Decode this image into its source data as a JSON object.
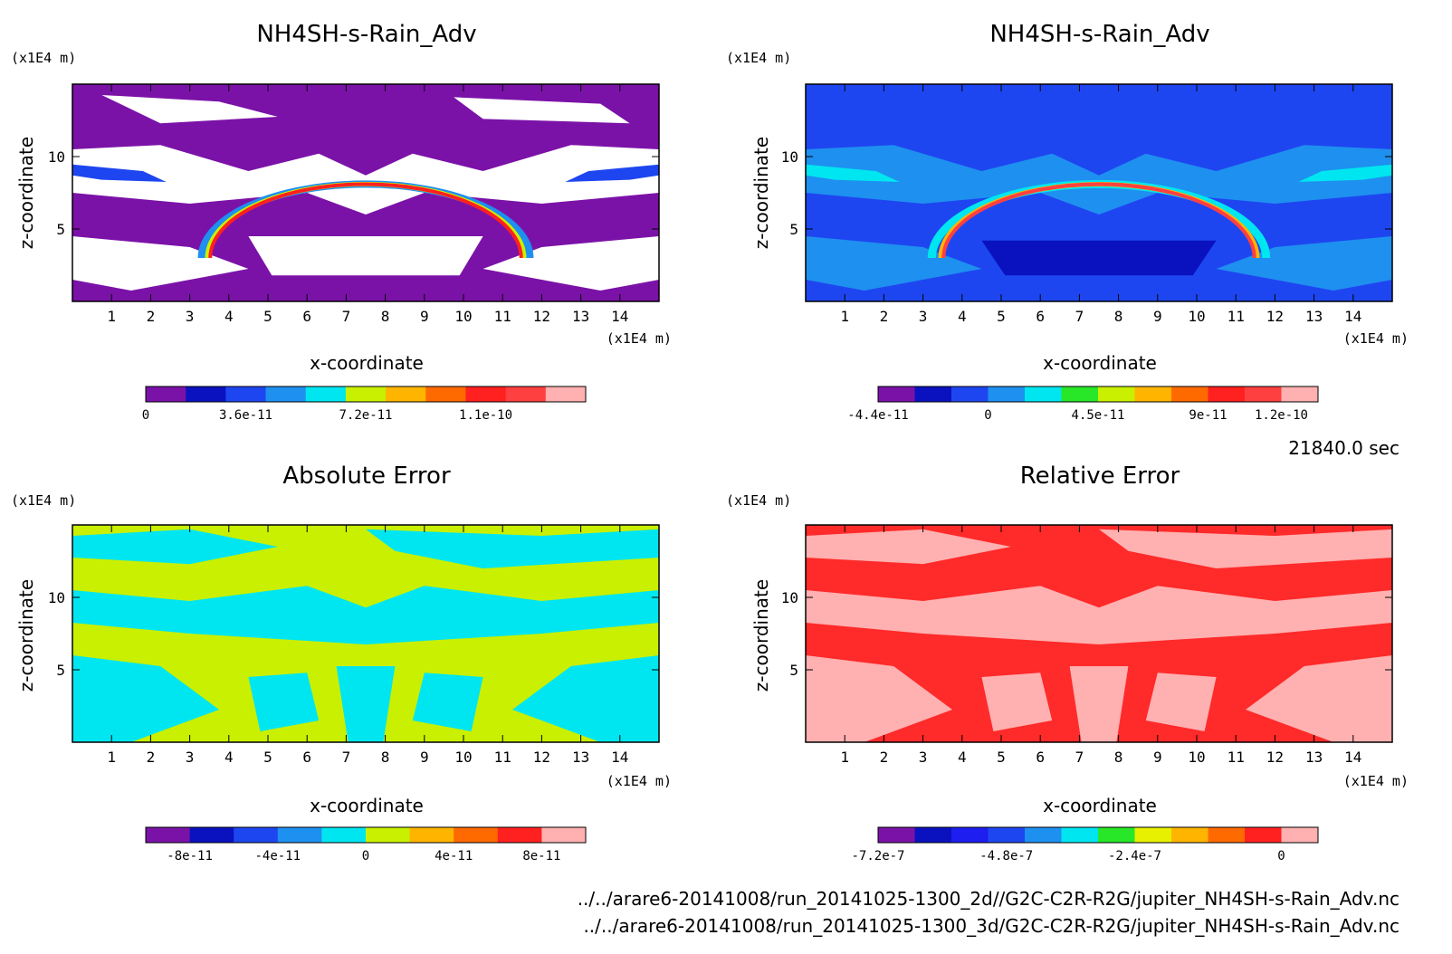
{
  "time_label": "21840.0 sec",
  "footer": {
    "line1": "../../arare6-20141008/run_20141025-1300_2d//G2C-C2R-R2G/jupiter_NH4SH-s-Rain_Adv.nc",
    "line2": "../../arare6-20141008/run_20141025-1300_3d/G2C-C2R-R2G/jupiter_NH4SH-s-Rain_Adv.nc"
  },
  "chart_data": [
    {
      "type": "heatmap",
      "title": "NH4SH-s-Rain_Adv",
      "xlabel": "x-coordinate",
      "ylabel": "z-coordinate",
      "x_unit": "(x1E4 m)",
      "z_unit": "(x1E4 m)",
      "xlim": [
        0,
        15
      ],
      "zlim": [
        0,
        15
      ],
      "x_ticks": [
        "1",
        "2",
        "3",
        "4",
        "5",
        "6",
        "7",
        "8",
        "9",
        "10",
        "11",
        "12",
        "13",
        "14"
      ],
      "z_ticks": [
        "5",
        "10"
      ],
      "colorbar": {
        "colors": [
          "#7b12a8",
          "#0a12c0",
          "#1e46f0",
          "#1e90f0",
          "#00e6f0",
          "#c8f000",
          "#ffb400",
          "#ff6a00",
          "#ff2020",
          "#ff4040",
          "#ffb0b0"
        ],
        "labels": [
          "0",
          "3.6e-11",
          "7.2e-11",
          "1.1e-10"
        ],
        "label_index": [
          0,
          2.5,
          5.5,
          8.5
        ]
      },
      "background_color": "#7b12a8"
    },
    {
      "type": "heatmap",
      "title": "NH4SH-s-Rain_Adv",
      "xlabel": "x-coordinate",
      "ylabel": "z-coordinate",
      "x_unit": "(x1E4 m)",
      "z_unit": "(x1E4 m)",
      "xlim": [
        0,
        15
      ],
      "zlim": [
        0,
        15
      ],
      "x_ticks": [
        "1",
        "2",
        "3",
        "4",
        "5",
        "6",
        "7",
        "8",
        "9",
        "10",
        "11",
        "12",
        "13",
        "14"
      ],
      "z_ticks": [
        "5",
        "10"
      ],
      "colorbar": {
        "colors": [
          "#7b12a8",
          "#0a12c0",
          "#1e46f0",
          "#1e90f0",
          "#00e6f0",
          "#28e628",
          "#c8f000",
          "#ffb400",
          "#ff6a00",
          "#ff2020",
          "#ff4040",
          "#ffb0b0"
        ],
        "labels": [
          "-4.4e-11",
          "0",
          "4.5e-11",
          "9e-11",
          "1.2e-10"
        ],
        "label_index": [
          0,
          3,
          6,
          9,
          11
        ]
      },
      "background_color": "#1e46f0"
    },
    {
      "type": "heatmap",
      "title": "Absolute Error",
      "xlabel": "x-coordinate",
      "ylabel": "z-coordinate",
      "x_unit": "(x1E4 m)",
      "z_unit": "(x1E4 m)",
      "xlim": [
        0,
        15
      ],
      "zlim": [
        0,
        15
      ],
      "x_ticks": [
        "1",
        "2",
        "3",
        "4",
        "5",
        "6",
        "7",
        "8",
        "9",
        "10",
        "11",
        "12",
        "13",
        "14"
      ],
      "z_ticks": [
        "5",
        "10"
      ],
      "colorbar": {
        "colors": [
          "#7b12a8",
          "#0a12c0",
          "#1e46f0",
          "#1e90f0",
          "#00e6f0",
          "#c8f000",
          "#ffb400",
          "#ff6a00",
          "#ff2020",
          "#ffb0b0"
        ],
        "labels": [
          "-8e-11",
          "-4e-11",
          "0",
          "4e-11",
          "8e-11"
        ],
        "label_index": [
          1,
          3,
          5,
          7,
          9
        ]
      },
      "background_color": "#c8f000"
    },
    {
      "type": "heatmap",
      "title": "Relative Error",
      "xlabel": "x-coordinate",
      "ylabel": "z-coordinate",
      "x_unit": "(x1E4 m)",
      "z_unit": "(x1E4 m)",
      "xlim": [
        0,
        15
      ],
      "zlim": [
        0,
        15
      ],
      "x_ticks": [
        "1",
        "2",
        "3",
        "4",
        "5",
        "6",
        "7",
        "8",
        "9",
        "10",
        "11",
        "12",
        "13",
        "14"
      ],
      "z_ticks": [
        "5",
        "10"
      ],
      "colorbar": {
        "colors": [
          "#7b12a8",
          "#0a12c0",
          "#1e1ef0",
          "#1e46f0",
          "#1e90f0",
          "#00e6f0",
          "#28e628",
          "#e6f000",
          "#ffb400",
          "#ff6a00",
          "#ff2020",
          "#ffb0b0"
        ],
        "labels": [
          "-7.2e-7",
          "-4.8e-7",
          "-2.4e-7",
          "0"
        ],
        "label_index": [
          0,
          3.5,
          7,
          11
        ]
      },
      "background_color": "#ff2a2a"
    }
  ]
}
